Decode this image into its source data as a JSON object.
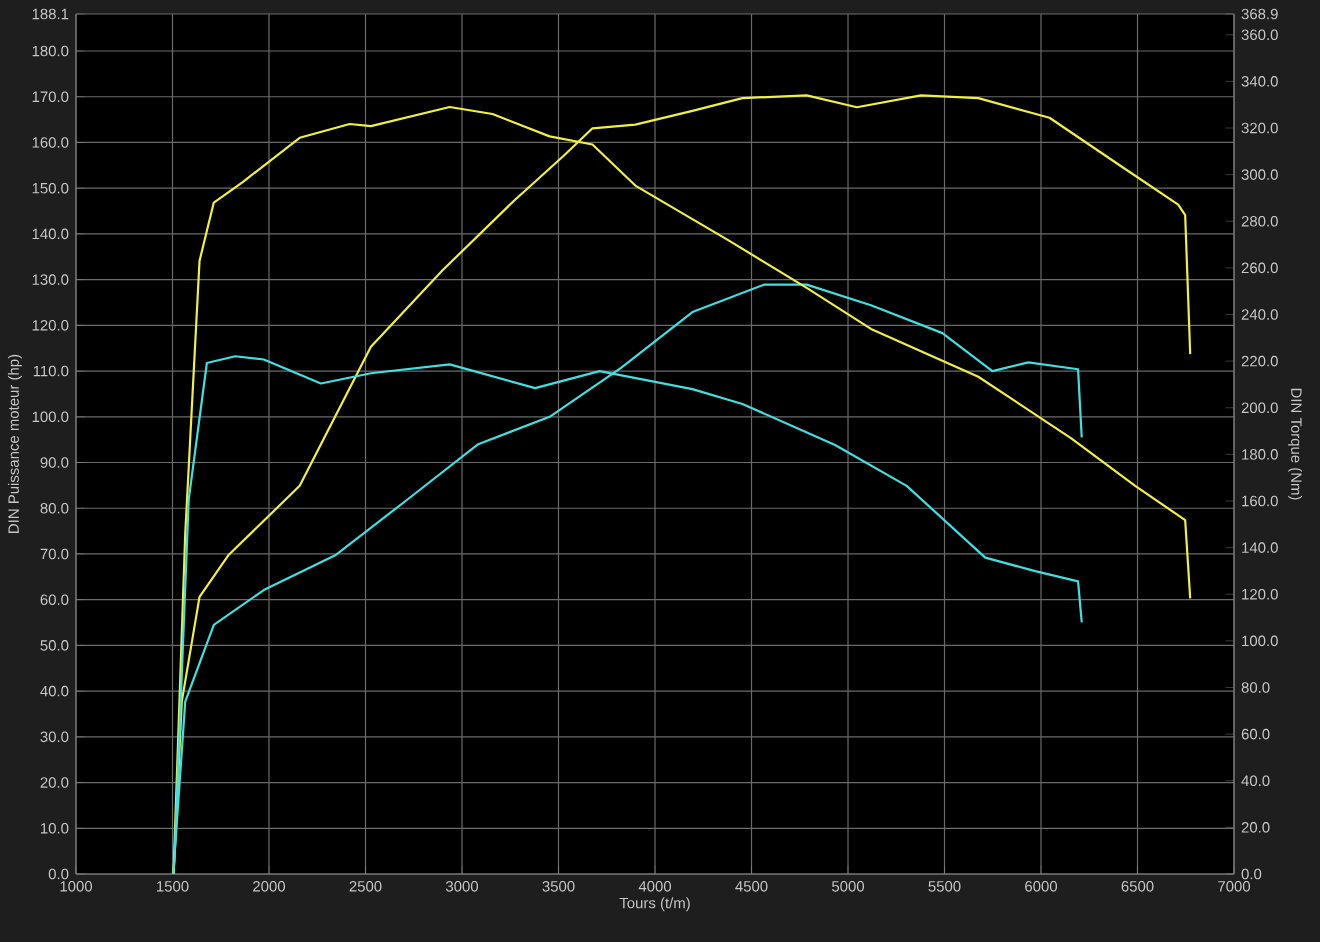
{
  "chart_data": {
    "type": "line",
    "xlabel": "Tours (t/m)",
    "ylabel": "DIN Puissance moteur (hp)",
    "y2label": "DIN Torque (Nm)",
    "xlim": [
      1000,
      7000
    ],
    "xticks": [
      1000,
      1500,
      2000,
      2500,
      3000,
      3500,
      4000,
      4500,
      5000,
      5500,
      6000,
      6500,
      7000
    ],
    "ylim": [
      0,
      188.1
    ],
    "yticks": [
      {
        "value": 0,
        "label": "0.0"
      },
      {
        "value": 10,
        "label": "10.0"
      },
      {
        "value": 20,
        "label": "20.0"
      },
      {
        "value": 30,
        "label": "30.0"
      },
      {
        "value": 40,
        "label": "40.0"
      },
      {
        "value": 50,
        "label": "50.0"
      },
      {
        "value": 60,
        "label": "60.0"
      },
      {
        "value": 70,
        "label": "70.0"
      },
      {
        "value": 80,
        "label": "80.0"
      },
      {
        "value": 90,
        "label": "90.0"
      },
      {
        "value": 100,
        "label": "100.0"
      },
      {
        "value": 110,
        "label": "110.0"
      },
      {
        "value": 120,
        "label": "120.0"
      },
      {
        "value": 130,
        "label": "130.0"
      },
      {
        "value": 140,
        "label": "140.0"
      },
      {
        "value": 150,
        "label": "150.0"
      },
      {
        "value": 160,
        "label": "160.0"
      },
      {
        "value": 170,
        "label": "170.0"
      },
      {
        "value": 180,
        "label": "180.0"
      },
      {
        "value": 188.1,
        "label": "188.1"
      }
    ],
    "y2lim": [
      0,
      368.9
    ],
    "y2ticks": [
      {
        "value": 0,
        "label": "0.0"
      },
      {
        "value": 20,
        "label": "20.0"
      },
      {
        "value": 40,
        "label": "40.0"
      },
      {
        "value": 60,
        "label": "60.0"
      },
      {
        "value": 80,
        "label": "80.0"
      },
      {
        "value": 100,
        "label": "100.0"
      },
      {
        "value": 120,
        "label": "120.0"
      },
      {
        "value": 140,
        "label": "140.0"
      },
      {
        "value": 160,
        "label": "160.0"
      },
      {
        "value": 180,
        "label": "180.0"
      },
      {
        "value": 200,
        "label": "200.0"
      },
      {
        "value": 220,
        "label": "220.0"
      },
      {
        "value": 240,
        "label": "240.0"
      },
      {
        "value": 260,
        "label": "260.0"
      },
      {
        "value": 280,
        "label": "280.0"
      },
      {
        "value": 300,
        "label": "300.0"
      },
      {
        "value": 320,
        "label": "320.0"
      },
      {
        "value": 340,
        "label": "340.0"
      },
      {
        "value": 360,
        "label": "360.0"
      },
      {
        "value": 368.9,
        "label": "368.9"
      }
    ],
    "grid": true,
    "series": [
      {
        "color": "#f0f040",
        "x": [
          1505,
          1511,
          1548,
          1640,
          1789,
          2159,
          2528,
          2898,
          3268,
          3527,
          3676,
          3898,
          4194,
          4453,
          4786,
          5046,
          5378,
          5675,
          6044,
          6415,
          6711,
          6747,
          6773
        ],
        "values": [
          0,
          4.3,
          37.7,
          60.6,
          69.7,
          84.9,
          115.3,
          132,
          147.2,
          157.1,
          163.1,
          163.9,
          166.9,
          169.7,
          170.3,
          167.7,
          170.3,
          169.7,
          165.4,
          154.8,
          146.4,
          144.1,
          113.7
        ]
      },
      {
        "color": "#f0f040",
        "axis": "y2",
        "x": [
          1505,
          1511,
          1566,
          1640,
          1714,
          1862,
          2159,
          2418,
          2528,
          2936,
          3158,
          3454,
          3676,
          3898,
          4379,
          4786,
          5119,
          5675,
          6155,
          6488,
          6747,
          6773
        ],
        "values": [
          0,
          14.2,
          146,
          263,
          288,
          296.7,
          315.8,
          321.7,
          320.8,
          329,
          326,
          316.4,
          312.9,
          295.3,
          271.9,
          251.4,
          233.8,
          213.3,
          187,
          166.5,
          151.8,
          118.2
        ]
      },
      {
        "color": "#40e0e0",
        "x": [
          1505,
          1511,
          1566,
          1714,
          1973,
          2343,
          2714,
          3084,
          3454,
          3824,
          4194,
          4564,
          4786,
          5119,
          5489,
          5748,
          5934,
          6192,
          6211
        ],
        "values": [
          0,
          4.3,
          37.7,
          54.5,
          62.1,
          69.7,
          81.8,
          94,
          100,
          110.7,
          122.9,
          128.9,
          128.9,
          124.4,
          118.3,
          110,
          111.9,
          110.4,
          95.5
        ]
      },
      {
        "color": "#40e0e0",
        "axis": "y2",
        "x": [
          1505,
          1511,
          1584,
          1678,
          1825,
          1973,
          2269,
          2528,
          2936,
          3379,
          3713,
          4194,
          4453,
          4933,
          5304,
          5711,
          5970,
          6192,
          6211
        ],
        "values": [
          0,
          8.3,
          160.6,
          219.2,
          222.1,
          220.7,
          210.4,
          214.8,
          218.6,
          208.4,
          215.7,
          208,
          201.6,
          184,
          166.5,
          135.7,
          129.9,
          125.5,
          107.9
        ]
      }
    ]
  }
}
